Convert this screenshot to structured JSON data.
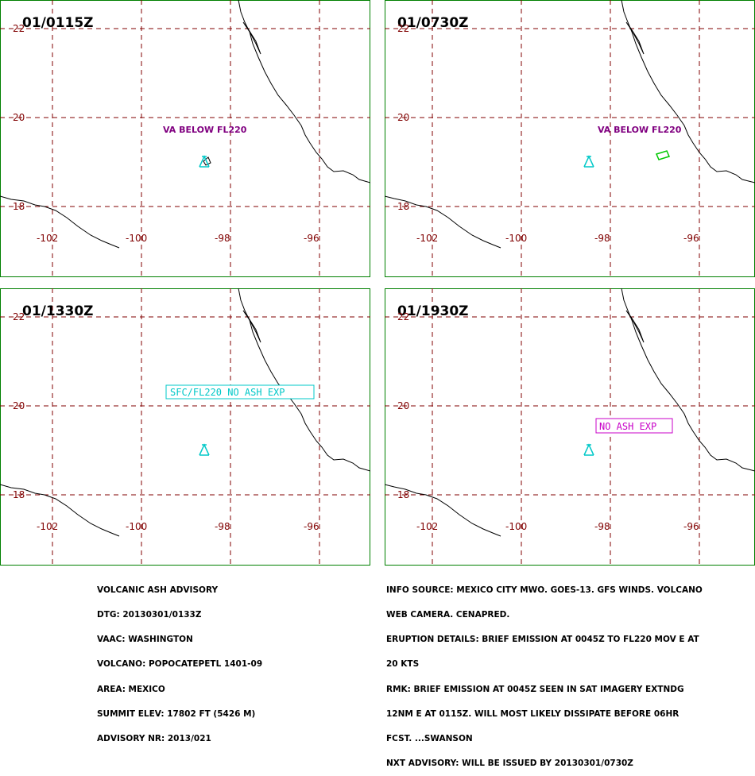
{
  "colors": {
    "frame": "#008000",
    "grid": "#800000",
    "coast": "#000000",
    "volcano": "#00c8c8",
    "label_purple": "#800080",
    "box_cyan": "#00c8c8",
    "box_magenta": "#c800c8",
    "ash_polygon": "#00c800"
  },
  "panels": [
    {
      "time": "01/0115Z",
      "label": "VA BELOW FL220",
      "box": "",
      "polygon": true
    },
    {
      "time": "01/0730Z",
      "label": "VA BELOW FL220",
      "box": "",
      "polygon": true
    },
    {
      "time": "01/1330Z",
      "label": "",
      "box": "SFC/FL220 NO ASH EXP",
      "polygon": false
    },
    {
      "time": "01/1930Z",
      "label": "",
      "box": "NO ASH EXP",
      "polygon": false
    }
  ],
  "axes": {
    "lon_labels": [
      "-102",
      "-100",
      "-98",
      "-96"
    ],
    "lat_labels": [
      "22",
      "20",
      "18"
    ]
  },
  "advisory_left": [
    "VOLCANIC ASH ADVISORY",
    "DTG: 20130301/0133Z",
    "VAAC: WASHINGTON",
    "VOLCANO: POPOCATEPETL 1401-09",
    "AREA: MEXICO",
    "SUMMIT ELEV: 17802 FT (5426 M)",
    "ADVISORY NR: 2013/021"
  ],
  "advisory_right": [
    "INFO SOURCE: MEXICO CITY MWO. GOES-13. GFS WINDS. VOLCANO",
    "WEB CAMERA. CENAPRED.",
    "ERUPTION DETAILS: BRIEF EMISSION AT 0045Z TO FL220 MOV E AT",
    "20 KTS",
    "RMK: BRIEF EMISSION AT 0045Z SEEN IN SAT IMAGERY EXTNDG",
    "12NM E AT 0115Z. WILL MOST LIKELY DISSIPATE BEFORE 06HR",
    "FCST. ...SWANSON",
    "NXT ADVISORY: WILL BE ISSUED BY 20130301/0730Z"
  ]
}
